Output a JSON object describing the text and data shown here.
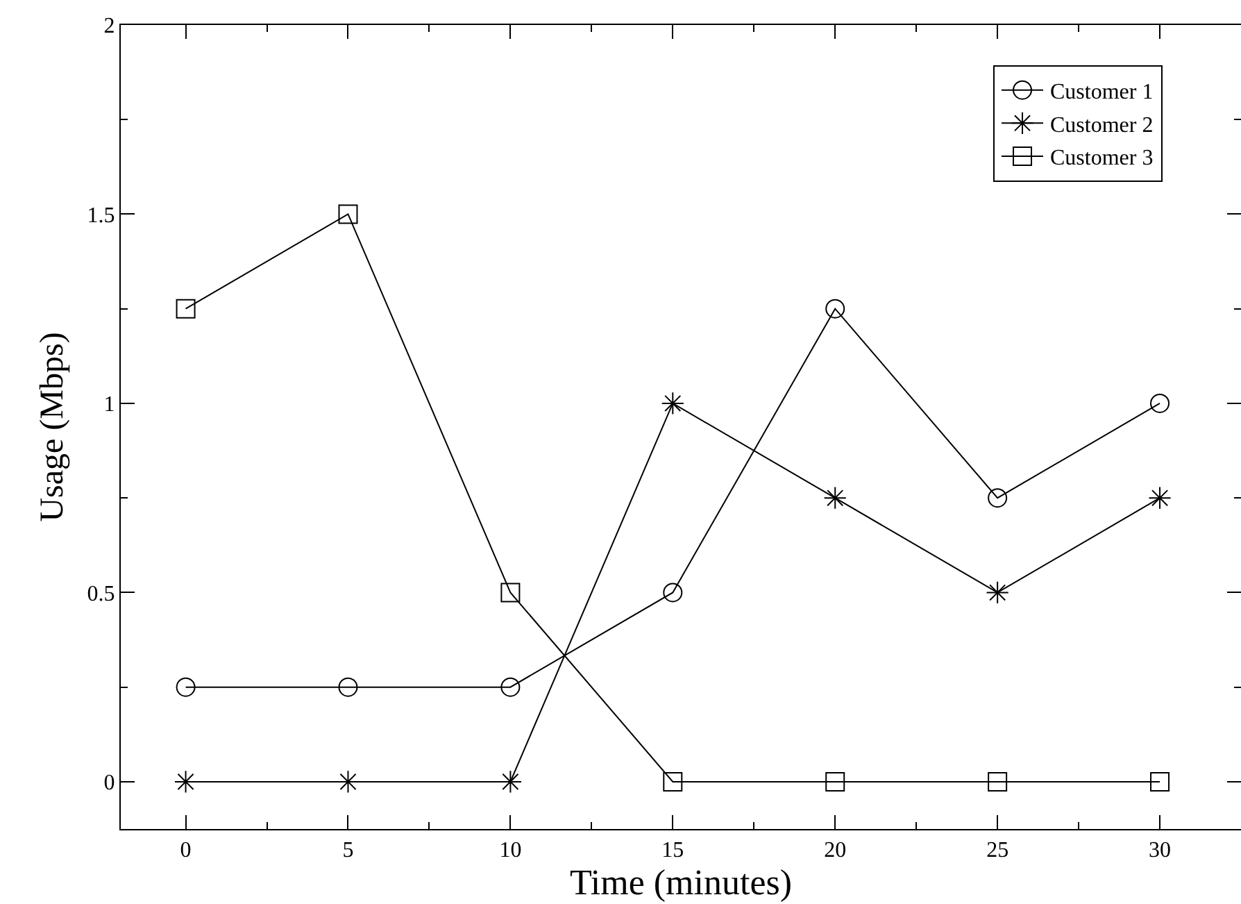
{
  "chart_data": {
    "type": "line",
    "xlabel": "Time (minutes)",
    "ylabel": "Usage (Mbps)",
    "x": [
      0,
      5,
      10,
      15,
      20,
      25,
      30
    ],
    "series": [
      {
        "name": "Customer 1",
        "color": "#000000",
        "marker": "circle",
        "values": [
          0.25,
          0.25,
          0.25,
          0.5,
          1.25,
          0.75,
          1.0
        ]
      },
      {
        "name": "Customer 2",
        "color": "#000000",
        "marker": "cross",
        "values": [
          0,
          0,
          0,
          1,
          0.75,
          0.5,
          0.75
        ]
      },
      {
        "name": "Customer 3",
        "color": "#000000",
        "marker": "square",
        "values": [
          1.25,
          1.5,
          0.5,
          0,
          0,
          0,
          0
        ]
      }
    ],
    "xlim": [
      -2,
      32.5
    ],
    "xticks": [
      0,
      5,
      10,
      15,
      20,
      25,
      30
    ],
    "ylim": [
      -0.125,
      2
    ],
    "yticks": [
      0,
      0.5,
      1,
      1.5,
      2
    ],
    "legend": "top right",
    "line_style": "solid"
  }
}
